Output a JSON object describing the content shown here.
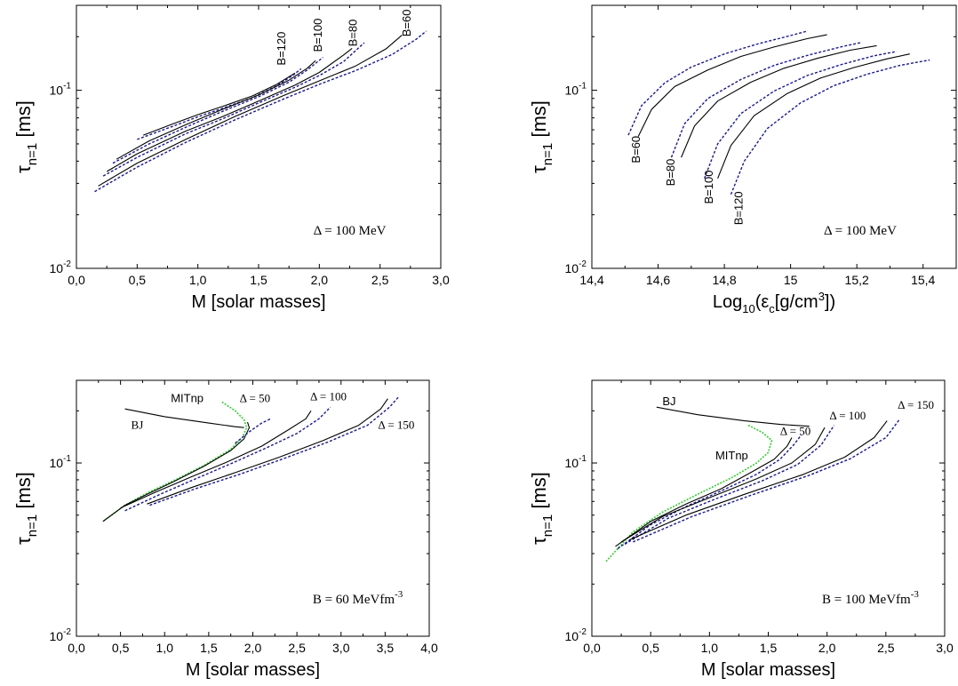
{
  "chart_data": [
    {
      "type": "line",
      "xlabel": "M [solar masses]",
      "ylabel_main": "τ",
      "ylabel_sub": "n=1",
      "ylabel_unit": " [ms]",
      "xlim": [
        0.0,
        3.0
      ],
      "ylim": [
        0.01,
        0.3
      ],
      "yscale": "log",
      "xticks": [
        "0,0",
        "0,5",
        "1,0",
        "1,5",
        "2,0",
        "2,5",
        "3,0"
      ],
      "xtick_values": [
        0,
        0.5,
        1,
        1.5,
        2,
        2.5,
        3
      ],
      "yticks": [
        {
          "v": 0.01,
          "base": "10",
          "exp": "-2"
        },
        {
          "v": 0.1,
          "base": "10",
          "exp": "-1"
        }
      ],
      "annotation": {
        "text": "Δ = 100 MeV",
        "x": 2.55,
        "y": 0.0155,
        "size": 15,
        "serif": true
      },
      "labels": [
        {
          "text": "B=120",
          "x": 1.72,
          "y": 0.138,
          "rotate": -90
        },
        {
          "text": "B=100",
          "x": 2.02,
          "y": 0.164,
          "rotate": -90
        },
        {
          "text": "B=80",
          "x": 2.31,
          "y": 0.176,
          "rotate": -90
        },
        {
          "text": "B=60",
          "x": 2.75,
          "y": 0.2,
          "rotate": -90
        }
      ],
      "series": [
        {
          "style": "solid",
          "x": [
            0.55,
            0.8,
            1.0,
            1.2,
            1.45,
            1.65,
            1.8
          ],
          "y": [
            0.056,
            0.065,
            0.073,
            0.081,
            0.093,
            0.108,
            0.125
          ]
        },
        {
          "style": "dashed",
          "x": [
            0.5,
            0.8,
            1.0,
            1.2,
            1.45,
            1.65,
            1.78,
            1.85
          ],
          "y": [
            0.053,
            0.063,
            0.071,
            0.079,
            0.091,
            0.106,
            0.121,
            0.132
          ]
        },
        {
          "style": "solid",
          "x": [
            0.33,
            0.6,
            0.9,
            1.2,
            1.5,
            1.75,
            1.9,
            1.97
          ],
          "y": [
            0.041,
            0.052,
            0.064,
            0.078,
            0.094,
            0.114,
            0.133,
            0.147
          ]
        },
        {
          "style": "dashed",
          "x": [
            0.3,
            0.6,
            0.9,
            1.2,
            1.5,
            1.75,
            1.9,
            2.03
          ],
          "y": [
            0.039,
            0.05,
            0.062,
            0.076,
            0.092,
            0.111,
            0.13,
            0.153
          ]
        },
        {
          "style": "solid",
          "x": [
            0.25,
            0.5,
            0.9,
            1.2,
            1.5,
            1.8,
            2.0,
            2.2,
            2.27
          ],
          "y": [
            0.035,
            0.044,
            0.059,
            0.071,
            0.087,
            0.107,
            0.126,
            0.158,
            0.172
          ]
        },
        {
          "style": "dashed",
          "x": [
            0.22,
            0.5,
            0.9,
            1.2,
            1.5,
            1.8,
            2.0,
            2.2,
            2.37
          ],
          "y": [
            0.033,
            0.042,
            0.057,
            0.069,
            0.085,
            0.104,
            0.121,
            0.145,
            0.185
          ]
        },
        {
          "style": "solid",
          "x": [
            0.18,
            0.5,
            0.9,
            1.3,
            1.7,
            2.0,
            2.3,
            2.55,
            2.68
          ],
          "y": [
            0.029,
            0.039,
            0.053,
            0.071,
            0.093,
            0.113,
            0.137,
            0.171,
            0.204
          ]
        },
        {
          "style": "dashed",
          "x": [
            0.15,
            0.5,
            0.9,
            1.3,
            1.7,
            2.0,
            2.3,
            2.6,
            2.8,
            2.88
          ],
          "y": [
            0.027,
            0.037,
            0.051,
            0.068,
            0.089,
            0.108,
            0.129,
            0.159,
            0.194,
            0.215
          ]
        }
      ]
    },
    {
      "type": "line",
      "xlabel_main": "Log",
      "xlabel_sub": "10",
      "xlabel_mid": "(ε",
      "xlabel_sub2": "c",
      "xlabel_mid2": "[g/cm",
      "xlabel_sup": "3",
      "xlabel_end": "])",
      "ylabel_main": "τ",
      "ylabel_sub": "n=1",
      "ylabel_unit": " [ms]",
      "xlim": [
        14.4,
        15.5
      ],
      "ylim": [
        0.01,
        0.3
      ],
      "yscale": "log",
      "xticks": [
        "14,4",
        "14,6",
        "14,8",
        "15",
        "15,2",
        "15,4"
      ],
      "xtick_values": [
        14.4,
        14.6,
        14.8,
        15.0,
        15.2,
        15.4
      ],
      "yticks": [
        {
          "v": 0.01,
          "base": "10",
          "exp": "-2"
        },
        {
          "v": 0.1,
          "base": "10",
          "exp": "-1"
        }
      ],
      "annotation": {
        "text": "Δ = 100 MeV",
        "x": 15.32,
        "y": 0.0155,
        "size": 15,
        "serif": true
      },
      "labels": [
        {
          "text": "B=60",
          "x": 14.545,
          "y": 0.039,
          "rotate": -90
        },
        {
          "text": "B=80",
          "x": 14.65,
          "y": 0.029,
          "rotate": -90
        },
        {
          "text": "B=100",
          "x": 14.765,
          "y": 0.023,
          "rotate": -90
        },
        {
          "text": "B=120",
          "x": 14.855,
          "y": 0.0175,
          "rotate": -90
        }
      ],
      "series": [
        {
          "style": "dashed",
          "x": [
            14.51,
            14.55,
            14.62,
            14.7,
            14.8,
            14.9,
            15.0,
            15.05
          ],
          "y": [
            0.056,
            0.082,
            0.11,
            0.135,
            0.16,
            0.182,
            0.203,
            0.215
          ]
        },
        {
          "style": "solid",
          "x": [
            14.54,
            14.58,
            14.65,
            14.75,
            14.85,
            14.95,
            15.05,
            15.11
          ],
          "y": [
            0.055,
            0.078,
            0.105,
            0.13,
            0.155,
            0.175,
            0.195,
            0.205
          ]
        },
        {
          "style": "dashed",
          "x": [
            14.64,
            14.68,
            14.75,
            14.85,
            14.95,
            15.05,
            15.15,
            15.21
          ],
          "y": [
            0.042,
            0.065,
            0.09,
            0.115,
            0.138,
            0.157,
            0.175,
            0.185
          ]
        },
        {
          "style": "solid",
          "x": [
            14.67,
            14.71,
            14.78,
            14.88,
            14.98,
            15.08,
            15.18,
            15.26
          ],
          "y": [
            0.042,
            0.063,
            0.087,
            0.111,
            0.133,
            0.151,
            0.168,
            0.178
          ]
        },
        {
          "style": "dashed",
          "x": [
            14.74,
            14.78,
            14.85,
            14.95,
            15.05,
            15.15,
            15.25,
            15.32
          ],
          "y": [
            0.032,
            0.05,
            0.074,
            0.099,
            0.121,
            0.139,
            0.156,
            0.165
          ]
        },
        {
          "style": "solid",
          "x": [
            14.78,
            14.82,
            14.89,
            14.99,
            15.09,
            15.19,
            15.29,
            15.36
          ],
          "y": [
            0.032,
            0.049,
            0.072,
            0.096,
            0.117,
            0.134,
            0.15,
            0.16
          ]
        },
        {
          "style": "dashed",
          "x": [
            14.82,
            14.86,
            14.93,
            15.03,
            15.13,
            15.23,
            15.33,
            15.42
          ],
          "y": [
            0.026,
            0.04,
            0.061,
            0.085,
            0.106,
            0.123,
            0.138,
            0.148
          ]
        }
      ]
    },
    {
      "type": "line",
      "xlabel": "M [solar masses]",
      "ylabel_main": "τ",
      "ylabel_sub": "n=1",
      "ylabel_unit": " [ms]",
      "xlim": [
        0.0,
        4.0
      ],
      "ylim": [
        0.01,
        0.3
      ],
      "yscale": "log",
      "xticks": [
        "0,0",
        "0,5",
        "1,0",
        "1,5",
        "2,0",
        "2,5",
        "3,0",
        "3,5",
        "4,0"
      ],
      "xtick_values": [
        0,
        0.5,
        1,
        1.5,
        2,
        2.5,
        3,
        3.5,
        4
      ],
      "yticks": [
        {
          "v": 0.01,
          "base": "10",
          "exp": "-2"
        },
        {
          "v": 0.1,
          "base": "10",
          "exp": "-1"
        }
      ],
      "annotation": {
        "text": "B = 60 MeVfm",
        "sup": "-3",
        "x": 3.7,
        "y": 0.0155,
        "size": 15,
        "serif": true
      },
      "labels": [
        {
          "text": "MITnp",
          "x": 1.07,
          "y": 0.225,
          "rotate": 0,
          "serif": false
        },
        {
          "text": "BJ",
          "x": 0.62,
          "y": 0.158,
          "rotate": 0,
          "serif": true
        },
        {
          "text": "Δ = 50",
          "x": 1.85,
          "y": 0.225,
          "rotate": 0,
          "serif": true
        },
        {
          "text": "Δ = 100",
          "x": 2.65,
          "y": 0.23,
          "rotate": 0,
          "serif": true
        },
        {
          "text": "Δ = 150",
          "x": 3.42,
          "y": 0.158,
          "rotate": 0,
          "serif": true
        }
      ],
      "series": [
        {
          "style": "solid",
          "x": [
            0.55,
            1.0,
            1.5,
            1.8,
            1.9
          ],
          "y": [
            0.205,
            0.185,
            0.17,
            0.162,
            0.16
          ]
        },
        {
          "style": "green",
          "x": [
            1.65,
            1.8,
            1.9,
            1.93,
            1.88,
            1.75,
            1.45,
            1.1,
            0.8,
            0.55,
            0.3
          ],
          "y": [
            0.225,
            0.2,
            0.178,
            0.16,
            0.14,
            0.12,
            0.097,
            0.079,
            0.067,
            0.057,
            0.046
          ]
        },
        {
          "style": "solid",
          "x": [
            0.3,
            0.55,
            0.8,
            1.1,
            1.45,
            1.75,
            1.9,
            1.96,
            1.94
          ],
          "y": [
            0.046,
            0.057,
            0.066,
            0.078,
            0.096,
            0.118,
            0.138,
            0.16,
            0.172
          ]
        },
        {
          "style": "dashed",
          "x": [
            1.8,
            1.95,
            2.1,
            2.2
          ],
          "y": [
            0.13,
            0.15,
            0.17,
            0.18
          ]
        },
        {
          "style": "solid",
          "x": [
            0.5,
            0.9,
            1.3,
            1.7,
            2.1,
            2.4,
            2.6,
            2.66
          ],
          "y": [
            0.055,
            0.068,
            0.083,
            0.101,
            0.125,
            0.155,
            0.18,
            0.2
          ]
        },
        {
          "style": "dashed",
          "x": [
            0.55,
            0.95,
            1.35,
            1.75,
            2.15,
            2.5,
            2.75,
            2.88
          ],
          "y": [
            0.053,
            0.066,
            0.081,
            0.099,
            0.122,
            0.148,
            0.18,
            0.21
          ]
        },
        {
          "style": "solid",
          "x": [
            0.8,
            1.3,
            1.8,
            2.3,
            2.8,
            3.2,
            3.45,
            3.53
          ],
          "y": [
            0.058,
            0.072,
            0.088,
            0.108,
            0.135,
            0.165,
            0.205,
            0.235
          ]
        },
        {
          "style": "dashed",
          "x": [
            0.83,
            1.35,
            1.85,
            2.35,
            2.85,
            3.3,
            3.55,
            3.65
          ],
          "y": [
            0.057,
            0.071,
            0.086,
            0.106,
            0.132,
            0.165,
            0.21,
            0.24
          ]
        }
      ]
    },
    {
      "type": "line",
      "xlabel": "M [solar masses]",
      "ylabel_main": "τ",
      "ylabel_sub": "n=1",
      "ylabel_unit": " [ms]",
      "xlim": [
        0.0,
        3.0
      ],
      "ylim": [
        0.01,
        0.3
      ],
      "yscale": "log",
      "xticks": [
        "0,0",
        "0,5",
        "1,0",
        "1,5",
        "2,0",
        "2,5",
        "3,0"
      ],
      "xtick_values": [
        0,
        0.5,
        1,
        1.5,
        2,
        2.5,
        3
      ],
      "yticks": [
        {
          "v": 0.01,
          "base": "10",
          "exp": "-2"
        },
        {
          "v": 0.1,
          "base": "10",
          "exp": "-1"
        }
      ],
      "annotation": {
        "text": "B = 100 MeVfm",
        "sup": "-3",
        "x": 2.78,
        "y": 0.0155,
        "size": 15,
        "serif": true
      },
      "labels": [
        {
          "text": "BJ",
          "x": 0.6,
          "y": 0.215,
          "rotate": 0,
          "serif": false
        },
        {
          "text": "MITnp",
          "x": 1.05,
          "y": 0.105,
          "rotate": 0,
          "serif": false
        },
        {
          "text": "Δ = 50",
          "x": 1.6,
          "y": 0.145,
          "rotate": 0,
          "serif": true
        },
        {
          "text": "Δ = 100",
          "x": 2.02,
          "y": 0.178,
          "rotate": 0,
          "serif": true
        },
        {
          "text": "Δ = 150",
          "x": 2.6,
          "y": 0.205,
          "rotate": 0,
          "serif": true
        }
      ],
      "series": [
        {
          "style": "solid",
          "x": [
            0.55,
            0.9,
            1.3,
            1.6,
            1.85
          ],
          "y": [
            0.21,
            0.19,
            0.175,
            0.167,
            0.163
          ]
        },
        {
          "style": "green",
          "x": [
            1.33,
            1.45,
            1.53,
            1.5,
            1.4,
            1.2,
            0.9,
            0.6,
            0.35,
            0.12
          ],
          "y": [
            0.165,
            0.15,
            0.135,
            0.115,
            0.1,
            0.083,
            0.066,
            0.052,
            0.04,
            0.027
          ]
        },
        {
          "style": "solid",
          "x": [
            0.2,
            0.5,
            0.8,
            1.1,
            1.35,
            1.55,
            1.66,
            1.7
          ],
          "y": [
            0.033,
            0.046,
            0.058,
            0.071,
            0.088,
            0.105,
            0.125,
            0.14
          ]
        },
        {
          "style": "dashed",
          "x": [
            0.22,
            0.5,
            0.8,
            1.1,
            1.4,
            1.6,
            1.72,
            1.78
          ],
          "y": [
            0.032,
            0.044,
            0.056,
            0.069,
            0.086,
            0.105,
            0.128,
            0.145
          ]
        },
        {
          "style": "solid",
          "x": [
            0.25,
            0.6,
            1.0,
            1.4,
            1.7,
            1.9,
            1.98
          ],
          "y": [
            0.035,
            0.049,
            0.063,
            0.081,
            0.1,
            0.128,
            0.16
          ]
        },
        {
          "style": "dashed",
          "x": [
            0.28,
            0.65,
            1.05,
            1.45,
            1.75,
            1.95,
            2.06
          ],
          "y": [
            0.034,
            0.048,
            0.062,
            0.079,
            0.098,
            0.127,
            0.165
          ]
        },
        {
          "style": "solid",
          "x": [
            0.32,
            0.8,
            1.3,
            1.8,
            2.15,
            2.4,
            2.51
          ],
          "y": [
            0.036,
            0.05,
            0.066,
            0.086,
            0.108,
            0.14,
            0.175
          ]
        },
        {
          "style": "dashed",
          "x": [
            0.35,
            0.85,
            1.35,
            1.85,
            2.2,
            2.5,
            2.62
          ],
          "y": [
            0.035,
            0.049,
            0.065,
            0.085,
            0.106,
            0.14,
            0.18
          ]
        }
      ]
    }
  ],
  "colors": {
    "solid": "#000000",
    "dashed": "#1a1a8c",
    "green": "#33cc33",
    "axis": "#000000"
  }
}
